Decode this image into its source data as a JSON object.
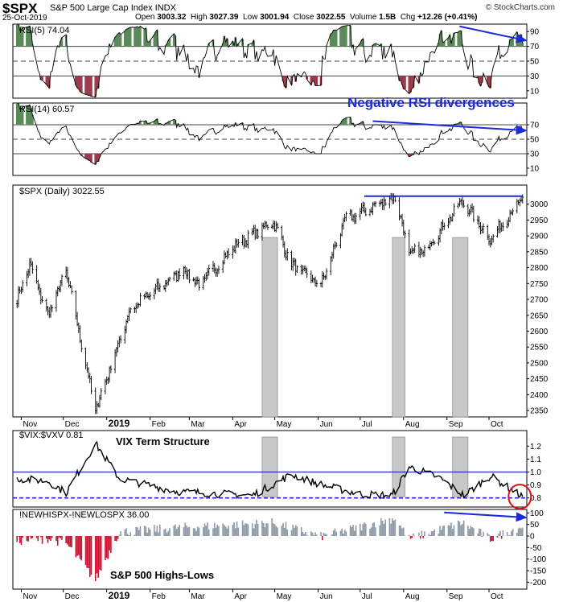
{
  "header": {
    "symbol": "$SPX",
    "description": "S&P 500 Large Cap Index INDX",
    "date": "25-Oct-2019",
    "open_label": "Open",
    "open": "3003.32",
    "high_label": "High",
    "high": "3027.39",
    "low_label": "Low",
    "low": "3001.94",
    "close_label": "Close",
    "close": "3022.55",
    "volume_label": "Volume",
    "volume": "1.5B",
    "chg_label": "Chg",
    "chg": "+12.26 (+0.41%)",
    "attribution": "© StockCharts.com"
  },
  "colors": {
    "price_bars": "#000000",
    "positive_fill": "#5a8a5a",
    "negative_fill": "#9b3b4b",
    "shading": "#c8c8c8",
    "annotation_blue": "#1d2ad8",
    "histogram_pos": "#8e9aa6",
    "histogram_neg": "#cc1133",
    "highlight_circle": "#dd1111"
  },
  "chart_data": [
    {
      "type": "line",
      "title": "RSI(5) 74.04",
      "series": [
        {
          "name": "RSI(5)",
          "last": 74.04
        }
      ],
      "ylim": [
        0,
        100
      ],
      "y_ticks": [
        10,
        30,
        50,
        70,
        90
      ],
      "reference_lines": [
        30,
        50,
        70
      ]
    },
    {
      "type": "line",
      "title": "RSI(14) 60.57",
      "series": [
        {
          "name": "RSI(14)",
          "last": 60.57
        }
      ],
      "ylim": [
        0,
        100
      ],
      "y_ticks": [
        10,
        30,
        50,
        70
      ],
      "reference_lines": [
        30,
        50,
        70
      ]
    },
    {
      "type": "bar",
      "title": "$SPX (Daily) 3022.55",
      "ylim": [
        2330,
        3060
      ],
      "y_ticks": [
        2350,
        2400,
        2450,
        2500,
        2550,
        2600,
        2650,
        2700,
        2750,
        2800,
        2850,
        2900,
        2950,
        3000
      ],
      "x_labels": [
        "Nov",
        "Dec",
        "2019",
        "Feb",
        "Mar",
        "Apr",
        "May",
        "Jun",
        "Jul",
        "Aug",
        "Sep",
        "Oct"
      ],
      "anchors": [
        [
          "2018-10-29",
          2700
        ],
        [
          "2018-11-07",
          2810
        ],
        [
          "2018-11-20",
          2650
        ],
        [
          "2018-12-03",
          2790
        ],
        [
          "2018-12-24",
          2351
        ],
        [
          "2019-01-18",
          2670
        ],
        [
          "2019-02-25",
          2795
        ],
        [
          "2019-03-08",
          2745
        ],
        [
          "2019-04-03",
          2870
        ],
        [
          "2019-04-30",
          2945
        ],
        [
          "2019-05-13",
          2810
        ],
        [
          "2019-06-03",
          2745
        ],
        [
          "2019-06-20",
          2950
        ],
        [
          "2019-07-26",
          3025
        ],
        [
          "2019-08-05",
          2845
        ],
        [
          "2019-08-15",
          2850
        ],
        [
          "2019-09-12",
          3010
        ],
        [
          "2019-10-02",
          2888
        ],
        [
          "2019-10-25",
          3022
        ]
      ],
      "shaded_periods": [
        [
          "2019-04-22",
          "2019-05-03"
        ],
        [
          "2019-07-24",
          "2019-08-02"
        ],
        [
          "2019-09-05",
          "2019-09-16"
        ]
      ],
      "resistance": {
        "value": 3025,
        "from": "2019-07-12",
        "to": "2019-10-25"
      }
    },
    {
      "type": "line",
      "title": "$VIX:$VXV 0.81",
      "series": [
        {
          "name": "$VIX:$VXV",
          "last": 0.81
        }
      ],
      "ylim": [
        0.73,
        1.32
      ],
      "y_ticks": [
        0.8,
        0.9,
        1.0,
        1.1,
        1.2
      ],
      "anchors": [
        [
          "2018-10-29",
          0.95
        ],
        [
          "2018-11-20",
          0.93
        ],
        [
          "2018-12-03",
          0.84
        ],
        [
          "2018-12-24",
          1.22
        ],
        [
          "2019-01-10",
          0.95
        ],
        [
          "2019-02-20",
          0.85
        ],
        [
          "2019-04-15",
          0.82
        ],
        [
          "2019-05-13",
          0.98
        ],
        [
          "2019-06-04",
          0.9
        ],
        [
          "2019-07-01",
          0.83
        ],
        [
          "2019-07-24",
          0.82
        ],
        [
          "2019-08-05",
          1.04
        ],
        [
          "2019-08-26",
          0.96
        ],
        [
          "2019-09-13",
          0.82
        ],
        [
          "2019-10-02",
          0.97
        ],
        [
          "2019-10-25",
          0.81
        ]
      ],
      "reference_lines": [
        1.0,
        0.8
      ]
    },
    {
      "type": "bar",
      "title": "!NEWHISPX-!NEWLOSPX 36.00",
      "series": [
        {
          "name": "!NEWHISPX-!NEWLOSPX",
          "last": 36.0
        }
      ],
      "ylim": [
        -230,
        115
      ],
      "y_ticks": [
        -200,
        -150,
        -100,
        -50,
        0,
        50,
        100
      ],
      "x_labels": [
        "Nov",
        "Dec",
        "2019",
        "Feb",
        "Mar",
        "Apr",
        "May",
        "Jun",
        "Jul",
        "Aug",
        "Sep",
        "Oct"
      ],
      "anchors": [
        [
          "2018-10-29",
          -30
        ],
        [
          "2018-11-20",
          -20
        ],
        [
          "2018-12-03",
          -40
        ],
        [
          "2018-12-24",
          -200
        ],
        [
          "2019-01-10",
          10
        ],
        [
          "2019-02-25",
          30
        ],
        [
          "2019-04-30",
          50
        ],
        [
          "2019-06-03",
          -10
        ],
        [
          "2019-07-26",
          70
        ],
        [
          "2019-08-05",
          -20
        ],
        [
          "2019-09-12",
          50
        ],
        [
          "2019-10-02",
          -20
        ],
        [
          "2019-10-25",
          36
        ]
      ]
    }
  ],
  "annotations": {
    "rsi_divergence": "Negative RSI divergences",
    "vix_term": "VIX Term Structure",
    "highs_lows": "S&P 500 Highs-Lows"
  }
}
